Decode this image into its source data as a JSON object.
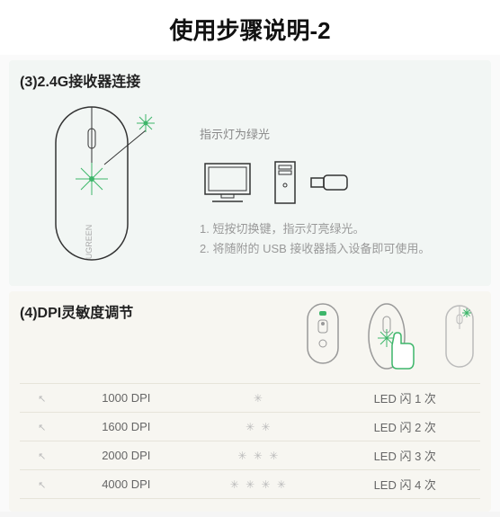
{
  "title": "使用步骤说明-2",
  "section3": {
    "heading": "(3)2.4G接收器连接",
    "indicator_label": "指示灯为绿光",
    "steps": [
      "1. 短按切换键，指示灯亮绿光。",
      "2. 将随附的 USB 接收器插入设备即可使用。"
    ],
    "mouse_brand": "UGREEN",
    "accent_color": "#3db66a"
  },
  "section4": {
    "heading": "(4)DPI灵敏度调节",
    "accent_color": "#3db66a",
    "table": {
      "rows": [
        {
          "dpi": "1000 DPI",
          "flashes": 1,
          "led_label": "LED 闪 1 次"
        },
        {
          "dpi": "1600 DPI",
          "flashes": 2,
          "led_label": "LED 闪 2 次"
        },
        {
          "dpi": "2000 DPI",
          "flashes": 3,
          "led_label": "LED 闪 3 次"
        },
        {
          "dpi": "4000 DPI",
          "flashes": 4,
          "led_label": "LED 闪 4 次"
        }
      ]
    }
  }
}
